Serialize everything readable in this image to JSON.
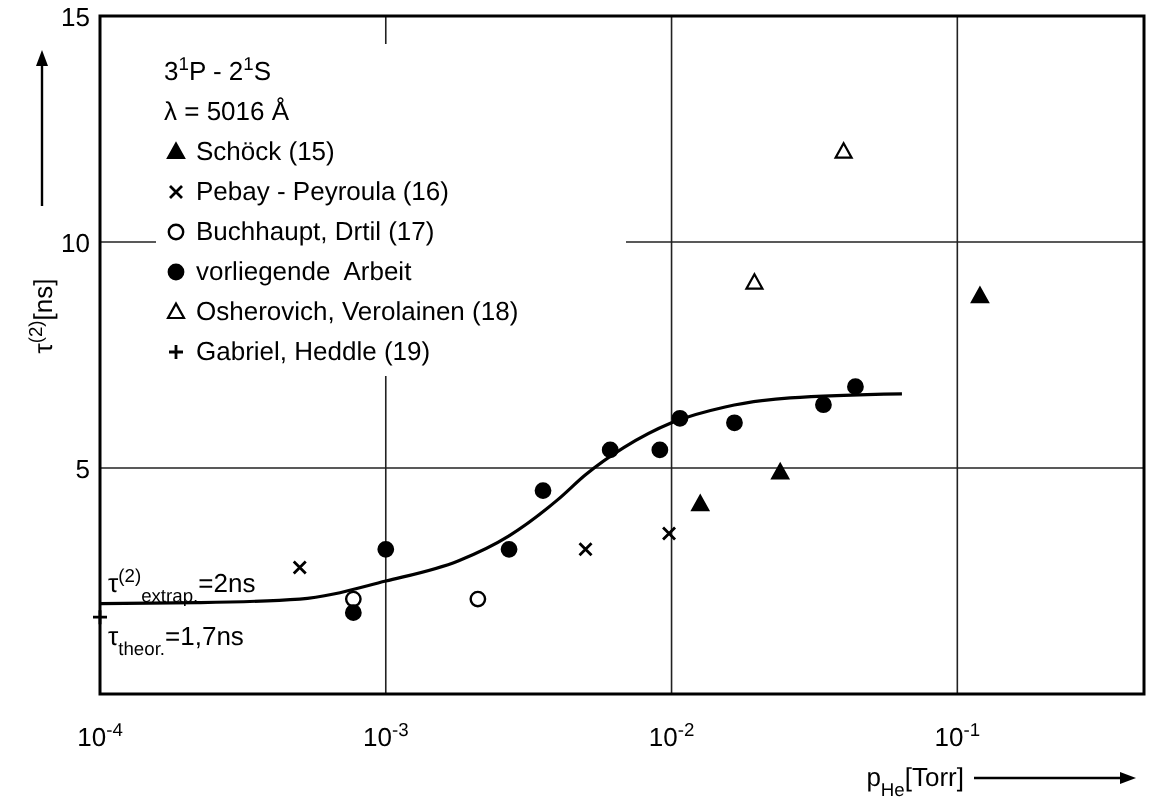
{
  "chart_data": {
    "type": "scatter",
    "xlabel": "p$_{He}$[Torr]",
    "ylabel": "τ$^{(2)}$[ns]",
    "log": "x",
    "xlim": [
      0.0001,
      0.45
    ],
    "ylim": [
      0,
      15
    ],
    "xticks": [
      {
        "value": 0.0001,
        "label": "10$^{-4}$"
      },
      {
        "value": 0.001,
        "label": "10$^{-3}$"
      },
      {
        "value": 0.01,
        "label": "10$^{-2}$"
      },
      {
        "value": 0.1,
        "label": "10$^{-1}$"
      }
    ],
    "yticks": [
      5,
      10,
      15
    ],
    "grid": true,
    "legend": "top left",
    "annotations": [
      "3$^{1}$P - 2$^{1}$S",
      "λ = 5016 Å",
      {
        "text": "τ$^{(2)}$$_{extrap.}$=2ns",
        "x": 0.0001,
        "y": 2.0
      },
      {
        "text": "τ$_{theor.}$=1,7ns",
        "x": 0.0001,
        "y": 1.7
      }
    ],
    "series": [
      {
        "name": "Schöck (15)",
        "color": "#000000",
        "marker": "triangle",
        "x": [
          0.0126,
          0.024,
          0.12
        ],
        "values": [
          4.2,
          4.9,
          8.8
        ]
      },
      {
        "name": "Pebay - Peyroula (16)",
        "color": "#000000",
        "marker": "cross",
        "x": [
          0.0005,
          0.005,
          0.0098
        ],
        "values": [
          2.8,
          3.2,
          3.55
        ]
      },
      {
        "name": "Buchhaupt, Drtil (17)",
        "color": "#000000",
        "marker": "circle-open",
        "x": [
          0.00077,
          0.0021
        ],
        "values": [
          2.1,
          2.1
        ]
      },
      {
        "name": "vorliegende  Arbeit",
        "color": "#000000",
        "marker": "circle",
        "x": [
          0.00077,
          0.001,
          0.0027,
          0.00355,
          0.0061,
          0.0091,
          0.0107,
          0.0166,
          0.034,
          0.044
        ],
        "values": [
          1.8,
          3.2,
          3.2,
          4.5,
          5.4,
          5.4,
          6.1,
          6.0,
          6.4,
          6.8
        ]
      },
      {
        "name": "Osherovich, Verolainen (18)",
        "color": "#000000",
        "marker": "triangle-open",
        "x": [
          0.0195,
          0.04
        ],
        "values": [
          9.1,
          12.0
        ]
      },
      {
        "name": "Gabriel, Heddle (19)",
        "color": "#000000",
        "marker": "plus",
        "x": [
          0.0001
        ],
        "values": [
          1.7
        ]
      },
      {
        "type": "line",
        "color": "#000000",
        "marker": "none",
        "x": [
          0.0001,
          0.00022,
          0.0005,
          0.001,
          0.0018,
          0.0027,
          0.004,
          0.005,
          0.0068,
          0.01,
          0.0154,
          0.026,
          0.064
        ],
        "values": [
          2.0,
          2.02,
          2.1,
          2.5,
          2.95,
          3.5,
          4.3,
          4.85,
          5.45,
          6.0,
          6.35,
          6.55,
          6.64
        ]
      }
    ]
  }
}
